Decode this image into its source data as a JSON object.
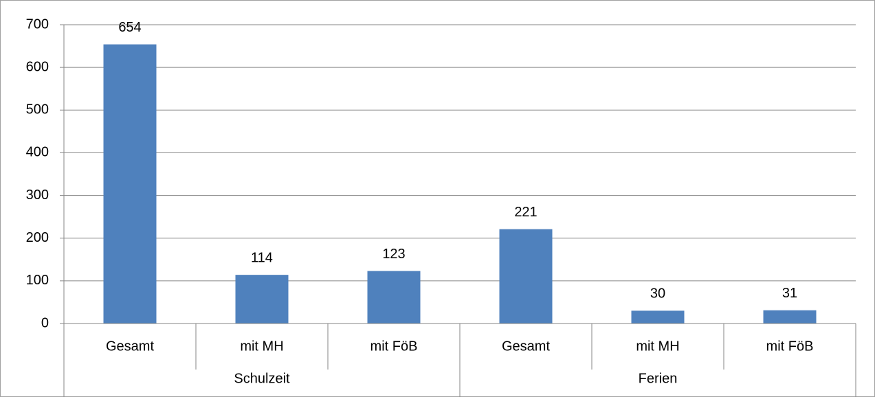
{
  "chart_data": {
    "type": "bar",
    "categories": [
      "Gesamt",
      "mit MH",
      "mit FöB",
      "Gesamt",
      "mit MH",
      "mit FöB"
    ],
    "groups": [
      "Schulzeit",
      "Ferien"
    ],
    "values": [
      654,
      114,
      123,
      221,
      30,
      31
    ],
    "color": "#4f81bd",
    "ylim": [
      0,
      700
    ],
    "yticks": [
      0,
      100,
      200,
      300,
      400,
      500,
      600,
      700
    ],
    "grid": true
  }
}
